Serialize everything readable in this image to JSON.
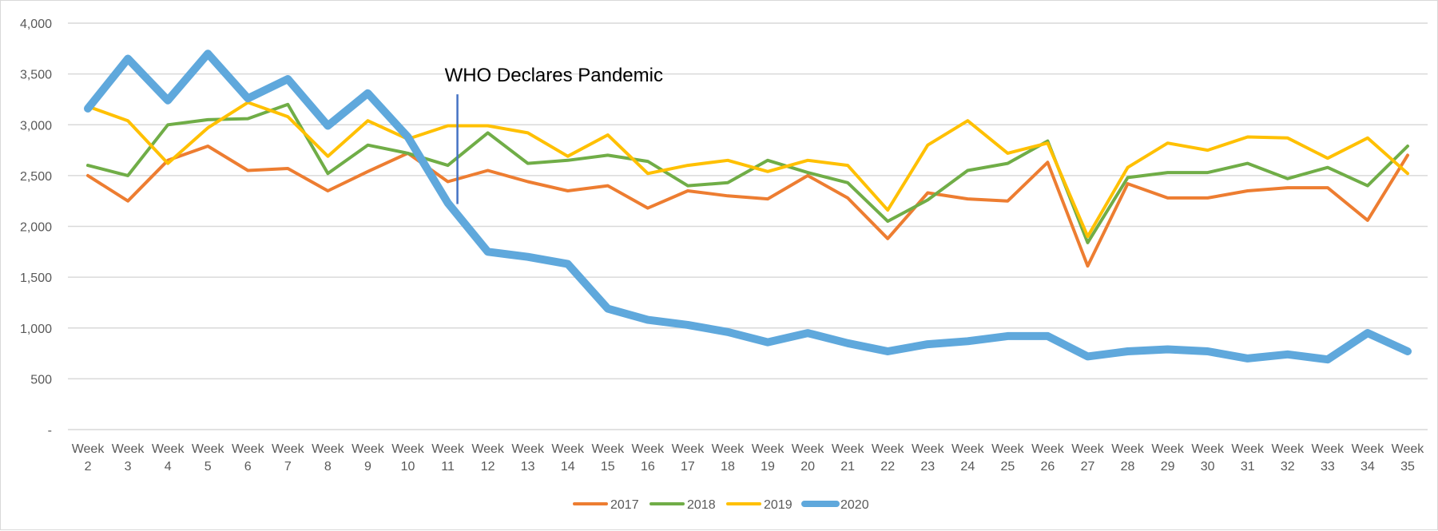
{
  "chart_data": {
    "type": "line",
    "title": "",
    "xlabel": "",
    "ylabel": "",
    "ylim": [
      0,
      4000
    ],
    "y_ticks": [
      0,
      500,
      1000,
      1500,
      2000,
      2500,
      3000,
      3500,
      4000
    ],
    "y_tick_labels": [
      "-",
      "500",
      "1,000",
      "1,500",
      "2,000",
      "2,500",
      "3,000",
      "3,500",
      "4,000"
    ],
    "grid": true,
    "legend_position": "bottom",
    "categories": [
      "Week 2",
      "Week 3",
      "Week 4",
      "Week 5",
      "Week 6",
      "Week 7",
      "Week 8",
      "Week 9",
      "Week 10",
      "Week 11",
      "Week 12",
      "Week 13",
      "Week 14",
      "Week 15",
      "Week 16",
      "Week 17",
      "Week 18",
      "Week 19",
      "Week 20",
      "Week 21",
      "Week 22",
      "Week 23",
      "Week 24",
      "Week 25",
      "Week 26",
      "Week 27",
      "Week 28",
      "Week 29",
      "Week 30",
      "Week 31",
      "Week 32",
      "Week 33",
      "Week 34",
      "Week 35"
    ],
    "series": [
      {
        "name": "2017",
        "color": "#ed7d31",
        "width": 4,
        "values": [
          2500,
          2250,
          2650,
          2790,
          2550,
          2570,
          2350,
          2540,
          2720,
          2440,
          2550,
          2440,
          2350,
          2400,
          2180,
          2350,
          2300,
          2270,
          2500,
          2280,
          1880,
          2330,
          2270,
          2250,
          2630,
          1610,
          2420,
          2280,
          2280,
          2350,
          2380,
          2380,
          2060,
          2700
        ]
      },
      {
        "name": "2018",
        "color": "#70ad47",
        "width": 4,
        "values": [
          2600,
          2500,
          3000,
          3050,
          3060,
          3200,
          2520,
          2800,
          2720,
          2600,
          2920,
          2620,
          2650,
          2700,
          2640,
          2400,
          2430,
          2650,
          2530,
          2430,
          2050,
          2260,
          2550,
          2620,
          2840,
          1840,
          2480,
          2530,
          2530,
          2620,
          2470,
          2580,
          2400,
          2790
        ]
      },
      {
        "name": "2019",
        "color": "#ffc000",
        "width": 4,
        "values": [
          3180,
          3040,
          2620,
          2970,
          3220,
          3080,
          2690,
          3040,
          2860,
          2990,
          2990,
          2920,
          2690,
          2900,
          2520,
          2600,
          2650,
          2540,
          2650,
          2600,
          2160,
          2800,
          3040,
          2720,
          2820,
          1900,
          2580,
          2820,
          2750,
          2880,
          2870,
          2670,
          2870,
          2520
        ]
      },
      {
        "name": "2020",
        "color": "#5fa8dc",
        "width": 10,
        "values": [
          3160,
          3650,
          3240,
          3700,
          3260,
          3450,
          2990,
          3310,
          2880,
          2230,
          1750,
          1700,
          1630,
          1190,
          1080,
          1030,
          960,
          860,
          950,
          850,
          770,
          840,
          870,
          920,
          920,
          720,
          770,
          790,
          770,
          700,
          740,
          690,
          950,
          770
        ]
      }
    ],
    "annotations": [
      {
        "text": "WHO Declares Pandemic",
        "x_category_index": 9.2,
        "y_from": 2220,
        "y_to": 3300,
        "color": "#4472c4"
      }
    ]
  }
}
